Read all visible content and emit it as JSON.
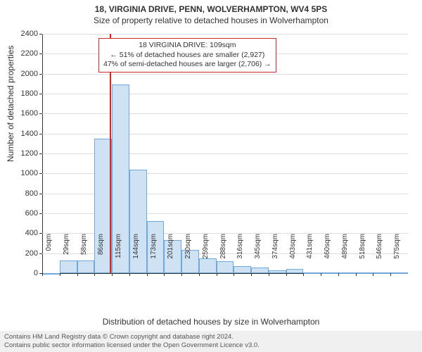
{
  "title": "18, VIRGINIA DRIVE, PENN, WOLVERHAMPTON, WV4 5PS",
  "subtitle": "Size of property relative to detached houses in Wolverhampton",
  "ylabel": "Number of detached properties",
  "xlabel": "Distribution of detached houses by size in Wolverhampton",
  "footer1": "Contains HM Land Registry data © Crown copyright and database right 2024.",
  "footer2": "Contains public sector information licensed under the Open Government Licence v3.0.",
  "annotation": {
    "line1": "18 VIRGINIA DRIVE: 109sqm",
    "line2": "← 51% of detached houses are smaller (2,927)",
    "line3": "47% of semi-detached houses are larger (2,706) →"
  },
  "chart": {
    "type": "histogram",
    "ylim": [
      0,
      2400
    ],
    "ytick_step": 200,
    "x_labels": [
      "0sqm",
      "29sqm",
      "58sqm",
      "86sqm",
      "115sqm",
      "144sqm",
      "173sqm",
      "201sqm",
      "230sqm",
      "259sqm",
      "288sqm",
      "316sqm",
      "345sqm",
      "374sqm",
      "403sqm",
      "431sqm",
      "460sqm",
      "489sqm",
      "518sqm",
      "546sqm",
      "575sqm"
    ],
    "values": [
      0,
      130,
      130,
      1350,
      1890,
      1040,
      520,
      330,
      230,
      150,
      120,
      70,
      60,
      30,
      40,
      10,
      10,
      10,
      10,
      10,
      5
    ],
    "bar_fill": "#cfe2f3",
    "bar_stroke": "#6fa8dc",
    "grid_color": "#dddddd",
    "background": "#ffffff",
    "ref_value_x": 109,
    "ref_line_color": "#d62728",
    "x_range": [
      0,
      590
    ],
    "title_fontsize": 12,
    "label_fontsize": 12,
    "tick_fontsize": 11,
    "xtick_fontsize": 10
  }
}
